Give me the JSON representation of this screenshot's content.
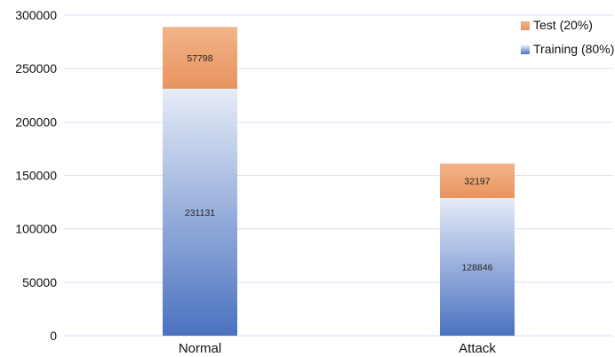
{
  "chart_data": {
    "type": "bar",
    "stacked": true,
    "categories": [
      "Normal",
      "Attack"
    ],
    "series": [
      {
        "name": "Training (80%)",
        "values": [
          231131,
          128846
        ],
        "color": "#4472c4",
        "color_light": "#dce4f5"
      },
      {
        "name": "Test (20%)",
        "values": [
          57798,
          32197
        ],
        "color": "#ed7d31",
        "color_light": "#f4b183"
      }
    ],
    "ylim": [
      0,
      300000
    ],
    "yticks": [
      0,
      50000,
      100000,
      150000,
      200000,
      250000,
      300000
    ],
    "grid": true,
    "legend_position": "top-right",
    "gridline_color": "#d9def3"
  }
}
